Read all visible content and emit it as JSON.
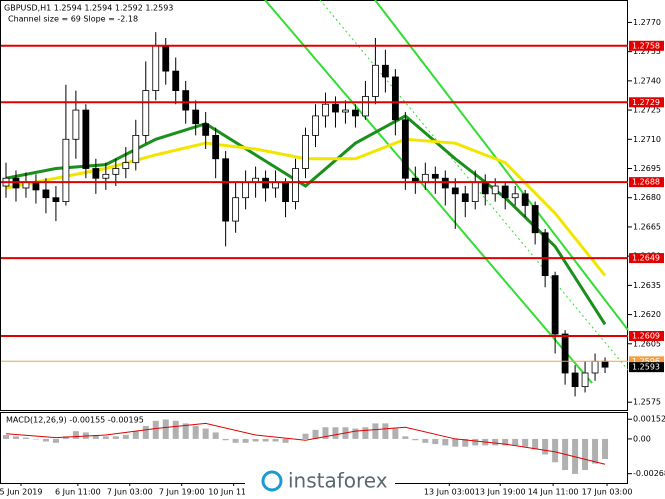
{
  "chart_data": {
    "type": "candlestick",
    "title": "GBPUSD,H1  1.2594 1.2594 1.2592 1.2593",
    "subtitle": "Channel size = 69 Slope = -2.18",
    "xlim": [
      -0.5,
      62.3
    ],
    "ylim": [
      1.2571,
      1.2781
    ],
    "yticks": [
      {
        "value": 1.277,
        "label": "1.2770"
      },
      1.2755,
      {
        "value": 1.274,
        "label": "1.2740"
      },
      1.2725,
      {
        "value": 1.271,
        "label": "1.2710"
      },
      1.2695,
      {
        "value": 1.268,
        "label": "1.2680"
      },
      1.2665,
      {
        "value": 1.265,
        "label": "1.2650"
      },
      1.2635,
      {
        "value": 1.262,
        "label": "1.2620"
      },
      1.2605,
      1.2575
    ],
    "xticks": [
      {
        "value": 1.5,
        "label": "5 Jun 2019"
      },
      {
        "value": 7.2,
        "label": "6 Jun 11:00"
      },
      {
        "value": 12.4,
        "label": "7 Jun 03:00"
      },
      {
        "value": 17.6,
        "label": "7 Jun 19:00"
      },
      {
        "value": 22.8,
        "label": "10 Jun 11:00"
      },
      {
        "value": 44.4,
        "label": "13 Jun 03:00"
      },
      {
        "value": 49.5,
        "label": "13 Jun 19:00"
      },
      {
        "value": 54.8,
        "label": "14 Jun 11:00"
      },
      {
        "value": 60.2,
        "label": "17 Jun 03:00"
      }
    ],
    "ohlc": [
      [
        1.2686,
        1.2698,
        1.268,
        1.269
      ],
      [
        1.269,
        1.2694,
        1.2678,
        1.2685
      ],
      [
        1.2685,
        1.2693,
        1.268,
        1.2688
      ],
      [
        1.2688,
        1.2692,
        1.2677,
        1.2684
      ],
      [
        1.2684,
        1.269,
        1.2672,
        1.268
      ],
      [
        1.268,
        1.2686,
        1.2668,
        1.2678
      ],
      [
        1.2678,
        1.2738,
        1.2676,
        1.271
      ],
      [
        1.271,
        1.2735,
        1.27,
        1.2725
      ],
      [
        1.2725,
        1.2728,
        1.269,
        1.2695
      ],
      [
        1.2695,
        1.27,
        1.2682,
        1.269
      ],
      [
        1.269,
        1.2698,
        1.2684,
        1.2692
      ],
      [
        1.2692,
        1.27,
        1.2686,
        1.2695
      ],
      [
        1.2695,
        1.2706,
        1.269,
        1.2698
      ],
      [
        1.2698,
        1.272,
        1.2694,
        1.2712
      ],
      [
        1.2712,
        1.275,
        1.2708,
        1.2735
      ],
      [
        1.2735,
        1.2765,
        1.273,
        1.2758
      ],
      [
        1.2758,
        1.2762,
        1.2738,
        1.2745
      ],
      [
        1.2745,
        1.2752,
        1.2728,
        1.2735
      ],
      [
        1.2735,
        1.274,
        1.2718,
        1.2725
      ],
      [
        1.2725,
        1.273,
        1.2712,
        1.2718
      ],
      [
        1.2718,
        1.2724,
        1.2705,
        1.2712
      ],
      [
        1.2712,
        1.2716,
        1.269,
        1.27
      ],
      [
        1.27,
        1.2704,
        1.2655,
        1.2668
      ],
      [
        1.2668,
        1.2688,
        1.2662,
        1.268
      ],
      [
        1.268,
        1.2694,
        1.2674,
        1.2688
      ],
      [
        1.2688,
        1.2696,
        1.268,
        1.269
      ],
      [
        1.269,
        1.2694,
        1.2678,
        1.2685
      ],
      [
        1.2685,
        1.2694,
        1.268,
        1.2688
      ],
      [
        1.2688,
        1.269,
        1.267,
        1.2678
      ],
      [
        1.2678,
        1.27,
        1.2674,
        1.2695
      ],
      [
        1.2695,
        1.2716,
        1.269,
        1.2712
      ],
      [
        1.2712,
        1.2728,
        1.2706,
        1.2722
      ],
      [
        1.2722,
        1.2734,
        1.2716,
        1.2728
      ],
      [
        1.2728,
        1.2732,
        1.2716,
        1.2724
      ],
      [
        1.2724,
        1.273,
        1.2718,
        1.2725
      ],
      [
        1.2725,
        1.2728,
        1.2716,
        1.2722
      ],
      [
        1.2722,
        1.274,
        1.272,
        1.2732
      ],
      [
        1.2732,
        1.2762,
        1.2728,
        1.2748
      ],
      [
        1.2748,
        1.2756,
        1.2734,
        1.2742
      ],
      [
        1.2742,
        1.2746,
        1.2712,
        1.272
      ],
      [
        1.272,
        1.2724,
        1.2684,
        1.269
      ],
      [
        1.269,
        1.2696,
        1.2682,
        1.2688
      ],
      [
        1.2688,
        1.2698,
        1.2684,
        1.2692
      ],
      [
        1.2692,
        1.2696,
        1.2682,
        1.269
      ],
      [
        1.269,
        1.2694,
        1.2676,
        1.2685
      ],
      [
        1.2685,
        1.269,
        1.2664,
        1.2682
      ],
      [
        1.2682,
        1.2686,
        1.267,
        1.2678
      ],
      [
        1.2678,
        1.2694,
        1.2674,
        1.2688
      ],
      [
        1.2688,
        1.2692,
        1.2676,
        1.2682
      ],
      [
        1.2682,
        1.269,
        1.2678,
        1.2686
      ],
      [
        1.2686,
        1.2688,
        1.2674,
        1.268
      ],
      [
        1.268,
        1.2686,
        1.2676,
        1.2682
      ],
      [
        1.2682,
        1.2684,
        1.267,
        1.2676
      ],
      [
        1.2676,
        1.2678,
        1.2656,
        1.2662
      ],
      [
        1.2662,
        1.2664,
        1.2634,
        1.264
      ],
      [
        1.264,
        1.2642,
        1.26,
        1.261
      ],
      [
        1.261,
        1.2612,
        1.2584,
        1.259
      ],
      [
        1.259,
        1.2594,
        1.2578,
        1.2583
      ],
      [
        1.2583,
        1.2596,
        1.258,
        1.259
      ],
      [
        1.259,
        1.26,
        1.2586,
        1.2596
      ],
      [
        1.2596,
        1.2598,
        1.259,
        1.2593
      ]
    ],
    "moving_averages": [
      {
        "color": "#1a8f1a",
        "x": [
          0,
          5,
          10,
          15,
          20,
          25,
          30,
          35,
          40,
          45,
          50,
          55,
          60
        ],
        "values": [
          1.269,
          1.2695,
          1.2697,
          1.271,
          1.2718,
          1.2702,
          1.2686,
          1.2708,
          1.2722,
          1.27,
          1.268,
          1.2655,
          1.2615
        ]
      },
      {
        "color": "#f2e600",
        "x": [
          0,
          5,
          10,
          15,
          20,
          25,
          30,
          35,
          40,
          45,
          50,
          55,
          60
        ],
        "values": [
          1.2685,
          1.269,
          1.2695,
          1.2702,
          1.2708,
          1.2705,
          1.27,
          1.27,
          1.271,
          1.2708,
          1.2698,
          1.2672,
          1.264
        ]
      }
    ],
    "levels": [
      1.2758,
      1.2729,
      1.2688,
      1.2649,
      1.2609
    ],
    "level_color": "#e00000",
    "orange_level": 1.2596,
    "last_price": 1.2593,
    "macd": {
      "label": "MACD(12,26,9) -0.00155 -0.00195",
      "ylim": [
        -0.0034,
        0.002
      ],
      "yticks": [
        0.00152,
        {
          "value": 0,
          "label": "0.00"
        },
        -0.00268
      ],
      "histogram": [
        0.0003,
        0.0002,
        0.0001,
        0.0,
        -0.0002,
        -0.0003,
        0.0002,
        0.0006,
        0.0005,
        0.0003,
        0.0002,
        0.0002,
        0.0003,
        0.0006,
        0.001,
        0.0014,
        0.0015,
        0.0014,
        0.0012,
        0.001,
        0.0008,
        0.0005,
        -0.0001,
        -0.0003,
        -0.0003,
        -0.0002,
        -0.0002,
        -0.0002,
        -0.0003,
        0.0,
        0.0004,
        0.0007,
        0.0009,
        0.0009,
        0.0009,
        0.0008,
        0.0009,
        0.0012,
        0.0012,
        0.0008,
        0.0002,
        -0.0001,
        -0.0003,
        -0.0004,
        -0.0005,
        -0.0006,
        -0.0006,
        -0.0005,
        -0.0005,
        -0.0005,
        -0.0005,
        -0.0005,
        -0.0006,
        -0.0008,
        -0.0012,
        -0.0018,
        -0.0024,
        -0.0027,
        -0.0024,
        -0.0019,
        -0.00155
      ],
      "signal": {
        "color": "#e00000",
        "x": [
          0,
          5,
          10,
          15,
          20,
          25,
          30,
          35,
          40,
          45,
          50,
          55,
          60
        ],
        "values": [
          0.0004,
          0.0001,
          0.0003,
          0.0008,
          0.0012,
          0.0003,
          -0.0001,
          0.0006,
          0.0009,
          0.0,
          -0.0004,
          -0.001,
          -0.00195
        ]
      }
    },
    "watermark": "instaforex"
  }
}
